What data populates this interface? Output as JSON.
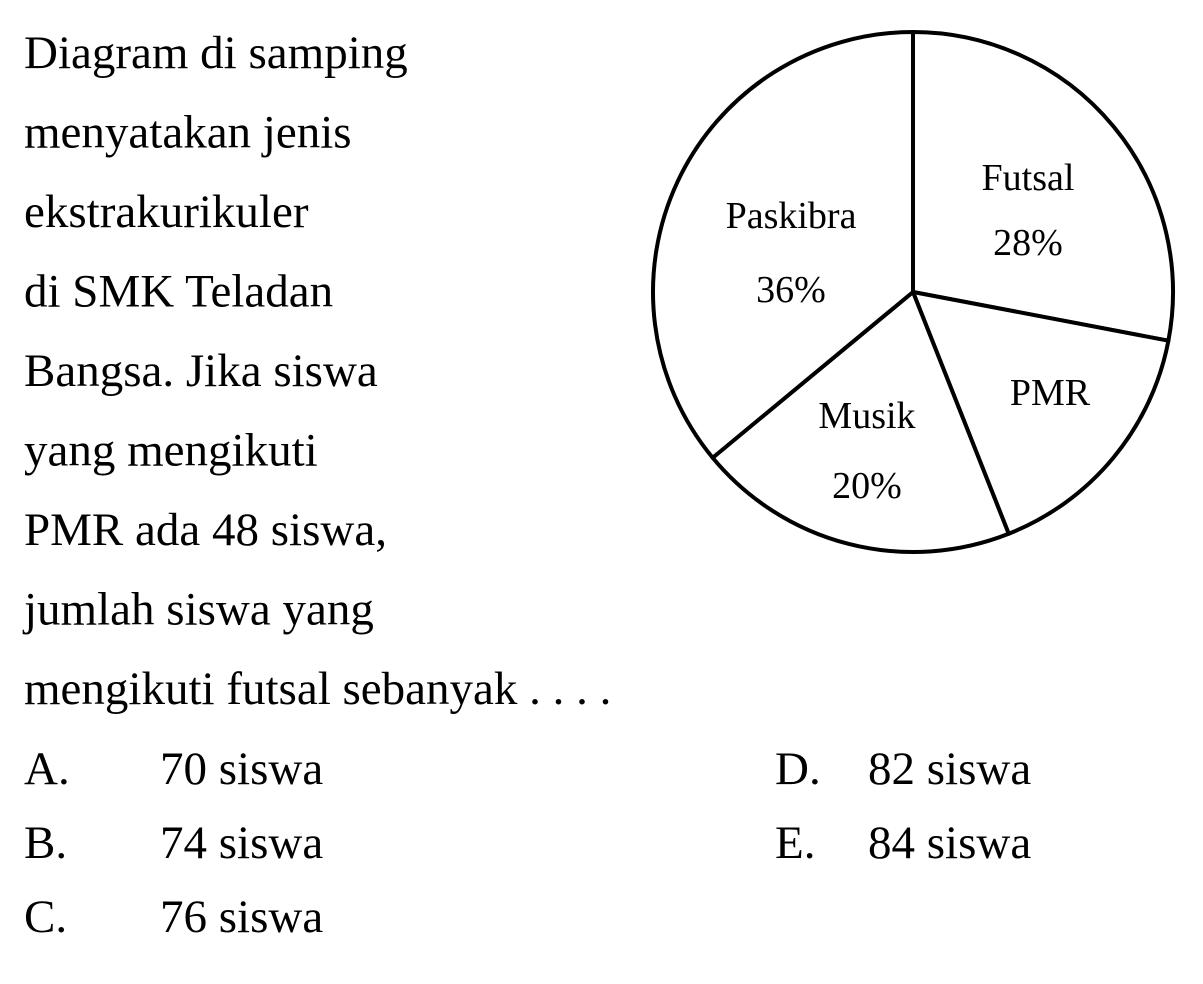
{
  "question": {
    "lines": [
      "Diagram di samping",
      "menyatakan jenis",
      "ekstrakurikuler",
      "di SMK Teladan",
      "Bangsa. Jika siswa",
      "yang mengikuti",
      "PMR ada 48 siswa,",
      "jumlah siswa yang",
      "mengikuti futsal sebanyak . . . ."
    ]
  },
  "options": [
    {
      "letter": "A.",
      "text": "70 siswa"
    },
    {
      "letter": "B.",
      "text": "74 siswa"
    },
    {
      "letter": "C.",
      "text": "76 siswa"
    },
    {
      "letter": "D.",
      "text": "82 siswa"
    },
    {
      "letter": "E.",
      "text": "84 siswa"
    }
  ],
  "chart_data": {
    "type": "pie",
    "categories": [
      "Futsal",
      "PMR",
      "Musik",
      "Paskibra"
    ],
    "values": [
      28,
      16,
      20,
      36
    ],
    "value_labels": [
      "28%",
      null,
      "20%",
      "36%"
    ]
  }
}
